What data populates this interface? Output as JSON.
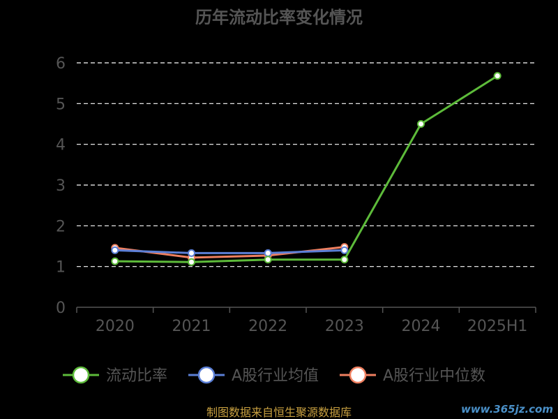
{
  "chart_data": {
    "type": "line",
    "title": "历年流动比率变化情况",
    "categories": [
      "2020",
      "2021",
      "2022",
      "2023",
      "2024",
      "2025H1"
    ],
    "ylim": [
      0,
      6
    ],
    "yticks": [
      0,
      1,
      2,
      3,
      4,
      5,
      6
    ],
    "grid": true,
    "legend_position": "bottom",
    "series": [
      {
        "name": "流动比率",
        "color": "#5dbb3a",
        "values": [
          1.13,
          1.11,
          1.17,
          1.17,
          4.5,
          5.68
        ]
      },
      {
        "name": "A股行业均值",
        "color": "#5b7fd6",
        "values": [
          1.4,
          1.33,
          1.33,
          1.4,
          null,
          null
        ]
      },
      {
        "name": "A股行业中位数",
        "color": "#f08060",
        "values": [
          1.46,
          1.22,
          1.27,
          1.48,
          null,
          null
        ]
      }
    ],
    "source": "制图数据来自恒生聚源数据库",
    "watermark": "www.365jz.com"
  }
}
